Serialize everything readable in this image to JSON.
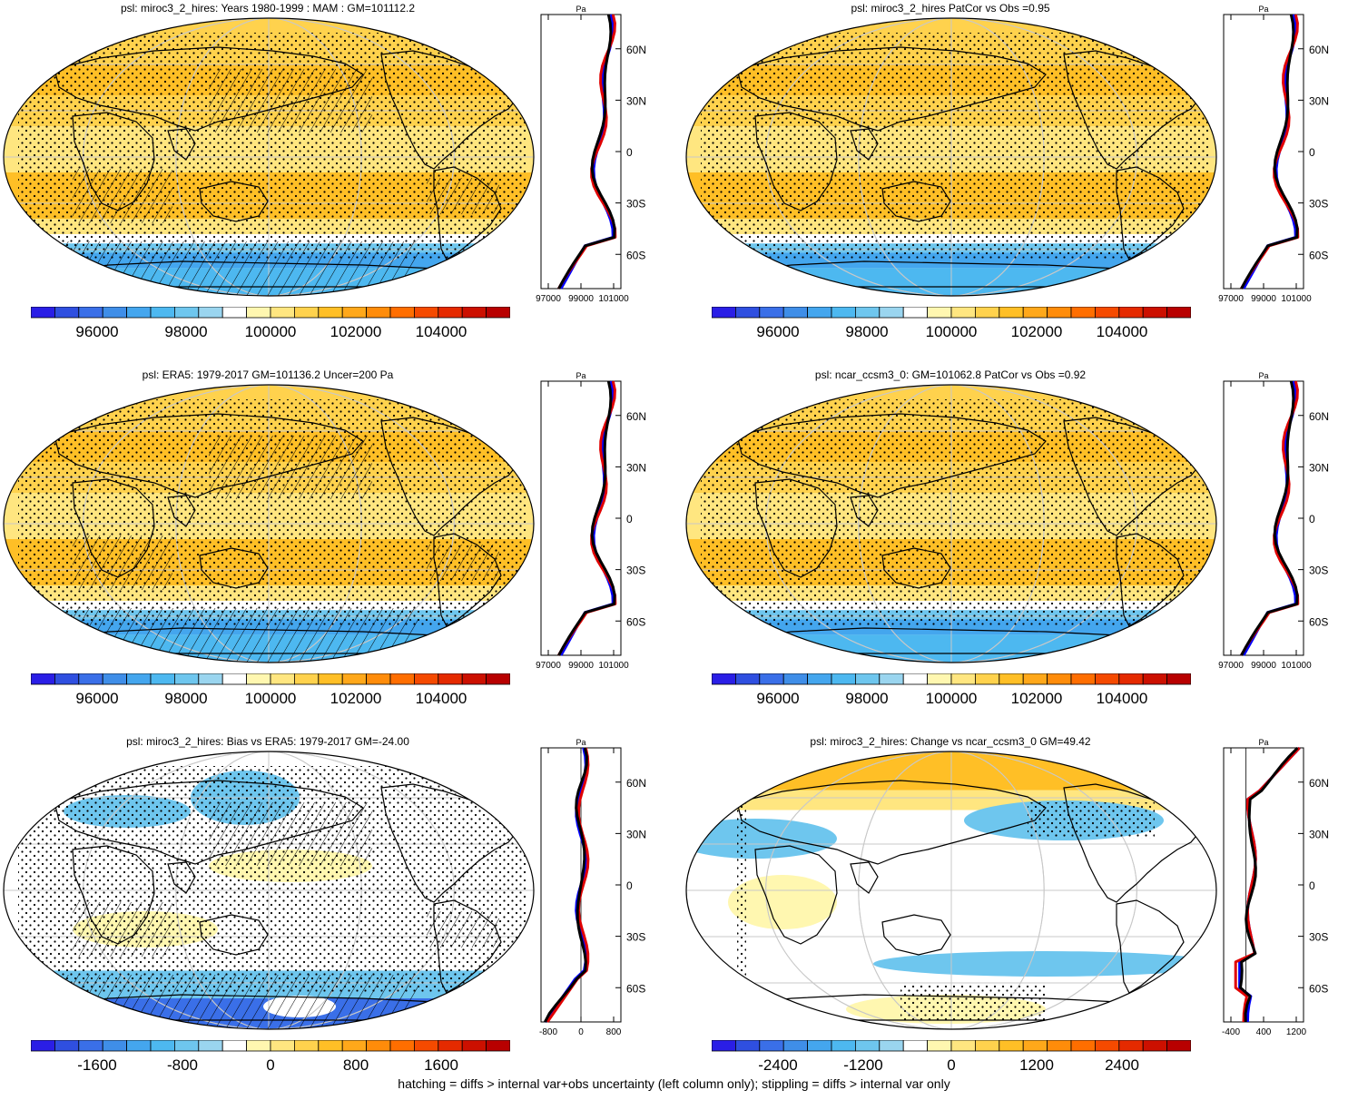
{
  "panels": [
    {
      "id": "p1",
      "title": "psl: miroc3_2_hires: Years 1980-1999 : MAM : GM=101112.2",
      "kind": "abs",
      "hatch": true,
      "colorbar": {
        "labels": [
          "96000",
          "98000",
          "100000",
          "102000",
          "104000"
        ]
      },
      "zonal": {
        "unit": "Pa",
        "xticks": [
          "97000",
          "99000",
          "101000"
        ],
        "lat_labels": [
          "60N",
          "30N",
          "0",
          "30S",
          "60S"
        ]
      }
    },
    {
      "id": "p2",
      "title": "psl: miroc3_2_hires PatCor vs Obs =0.95",
      "kind": "abs",
      "hatch": false,
      "colorbar": {
        "labels": [
          "96000",
          "98000",
          "100000",
          "102000",
          "104000"
        ]
      },
      "zonal": {
        "unit": "Pa",
        "xticks": [
          "97000",
          "99000",
          "101000"
        ],
        "lat_labels": [
          "60N",
          "30N",
          "0",
          "30S",
          "60S"
        ]
      }
    },
    {
      "id": "p3",
      "title": "psl: ERA5: 1979-2017 GM=101136.2 Uncer=200 Pa",
      "kind": "abs",
      "hatch": true,
      "colorbar": {
        "labels": [
          "96000",
          "98000",
          "100000",
          "102000",
          "104000"
        ]
      },
      "zonal": {
        "unit": "Pa",
        "xticks": [
          "97000",
          "99000",
          "101000"
        ],
        "lat_labels": [
          "60N",
          "30N",
          "0",
          "30S",
          "60S"
        ]
      }
    },
    {
      "id": "p4",
      "title": "psl: ncar_ccsm3_0: GM=101062.8 PatCor vs Obs =0.92",
      "kind": "abs",
      "hatch": false,
      "colorbar": {
        "labels": [
          "96000",
          "98000",
          "100000",
          "102000",
          "104000"
        ]
      },
      "zonal": {
        "unit": "Pa",
        "xticks": [
          "97000",
          "99000",
          "101000"
        ],
        "lat_labels": [
          "60N",
          "30N",
          "0",
          "30S",
          "60S"
        ]
      }
    },
    {
      "id": "p5",
      "title": "psl: miroc3_2_hires: Bias vs ERA5: 1979-2017 GM=-24.00",
      "kind": "bias",
      "hatch": true,
      "colorbar": {
        "labels": [
          "-1600",
          "-800",
          "0",
          "800",
          "1600"
        ]
      },
      "zonal": {
        "unit": "Pa",
        "xticks": [
          "-800",
          "0",
          "800"
        ],
        "lat_labels": [
          "60N",
          "30N",
          "0",
          "30S",
          "60S"
        ]
      }
    },
    {
      "id": "p6",
      "title": "psl: miroc3_2_hires: Change vs ncar_ccsm3_0 GM=49.42",
      "kind": "change",
      "hatch": false,
      "colorbar": {
        "labels": [
          "-2400",
          "-1200",
          "0",
          "1200",
          "2400"
        ]
      },
      "zonal": {
        "unit": "Pa",
        "xticks": [
          "-400",
          "400",
          "1200"
        ],
        "lat_labels": [
          "60N",
          "30N",
          "0",
          "30S",
          "60S"
        ]
      }
    }
  ],
  "palette": [
    "#2a1ee6",
    "#2f4fe0",
    "#3a6fe8",
    "#3f8ee8",
    "#44a6ee",
    "#4db8f0",
    "#6ec6ee",
    "#9ad5ef",
    "#ffffff",
    "#fff7b0",
    "#ffe680",
    "#ffd24d",
    "#ffbf26",
    "#ffa81a",
    "#ff8c0a",
    "#ff6e00",
    "#f54a00",
    "#e52a00",
    "#cc1000",
    "#b80000"
  ],
  "footer": "hatching = diffs > internal var+obs uncertainty (left column only); stippling = diffs > internal var only"
}
